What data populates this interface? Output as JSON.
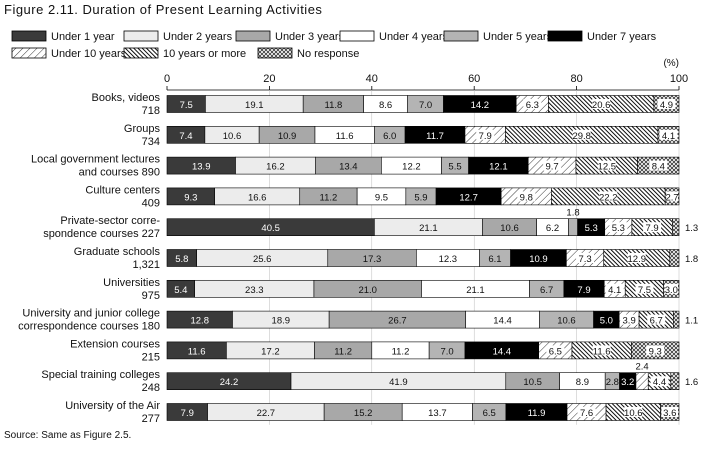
{
  "figure": {
    "title": "Figure 2.11. Duration of Present Learning Activities",
    "source": "Source: Same as Figure 2.5."
  },
  "chart_data": {
    "type": "bar",
    "orientation": "horizontal",
    "stacked": true,
    "percent_label": "(%)",
    "xlim": [
      0,
      100
    ],
    "x_ticks": [
      0,
      20,
      40,
      60,
      80,
      100
    ],
    "legend_placement": "top",
    "series": [
      {
        "name": "Under 1 year",
        "color": "#3a3a3a",
        "pattern": "solid-dark"
      },
      {
        "name": "Under 2 years",
        "color": "#ececec",
        "pattern": "solid-light"
      },
      {
        "name": "Under 3 years",
        "color": "#a8a8a8",
        "pattern": "solid-mid"
      },
      {
        "name": "Under 4 years",
        "color": "#ffffff",
        "pattern": "white"
      },
      {
        "name": "Under 5 years",
        "color": "#b4b4b4",
        "pattern": "solid-mid2"
      },
      {
        "name": "Under 7 years",
        "color": "#000000",
        "pattern": "black"
      },
      {
        "name": "Under 10 years",
        "color": "#ffffff",
        "pattern": "hatch-light"
      },
      {
        "name": "10 years or more",
        "color": "#000000",
        "pattern": "hatch-dense"
      },
      {
        "name": "No response",
        "color": "#ffffff",
        "pattern": "crosshatch"
      }
    ],
    "rows": [
      {
        "label": [
          "Books, videos"
        ],
        "n": "718",
        "values": [
          7.5,
          19.1,
          11.8,
          8.6,
          7.0,
          14.2,
          6.3,
          20.6,
          4.9
        ]
      },
      {
        "label": [
          "Groups"
        ],
        "n": "734",
        "values": [
          7.4,
          10.6,
          10.9,
          11.6,
          6.0,
          11.7,
          7.9,
          29.8,
          4.1
        ]
      },
      {
        "label": [
          "Local government lectures",
          "and courses"
        ],
        "n": "890",
        "values": [
          13.9,
          16.2,
          13.4,
          12.2,
          5.5,
          12.1,
          9.7,
          12.5,
          8.4
        ]
      },
      {
        "label": [
          "Culture centers"
        ],
        "n": "409",
        "values": [
          9.3,
          16.6,
          11.2,
          9.5,
          5.9,
          12.7,
          9.8,
          22.2,
          2.7
        ]
      },
      {
        "label": [
          "Private-sector corre-",
          "spondence courses"
        ],
        "n": "227",
        "values": [
          40.5,
          21.1,
          10.6,
          6.2,
          1.8,
          5.3,
          5.3,
          7.9,
          1.3
        ]
      },
      {
        "label": [
          "Graduate schools"
        ],
        "n": "1,321",
        "values": [
          5.8,
          25.6,
          17.3,
          12.3,
          6.1,
          10.9,
          7.3,
          12.9,
          1.8
        ]
      },
      {
        "label": [
          "Universities"
        ],
        "n": "975",
        "values": [
          5.4,
          23.3,
          21.0,
          21.1,
          6.7,
          7.9,
          4.1,
          7.5,
          3.0
        ]
      },
      {
        "label": [
          "University and junior college",
          "correspondence courses"
        ],
        "n": "180",
        "values": [
          12.8,
          18.9,
          26.7,
          14.4,
          10.6,
          5.0,
          3.9,
          6.7,
          1.1
        ]
      },
      {
        "label": [
          "Extension courses"
        ],
        "n": "215",
        "values": [
          11.6,
          17.2,
          11.2,
          11.2,
          7.0,
          14.4,
          6.5,
          11.6,
          9.3
        ]
      },
      {
        "label": [
          "Special training colleges"
        ],
        "n": "248",
        "values": [
          24.2,
          41.9,
          10.5,
          8.9,
          2.8,
          3.2,
          2.4,
          4.4,
          1.6
        ]
      },
      {
        "label": [
          "University of the Air"
        ],
        "n": "277",
        "values": [
          7.9,
          22.7,
          15.2,
          13.7,
          6.5,
          11.9,
          7.6,
          10.6,
          3.6
        ]
      }
    ]
  }
}
